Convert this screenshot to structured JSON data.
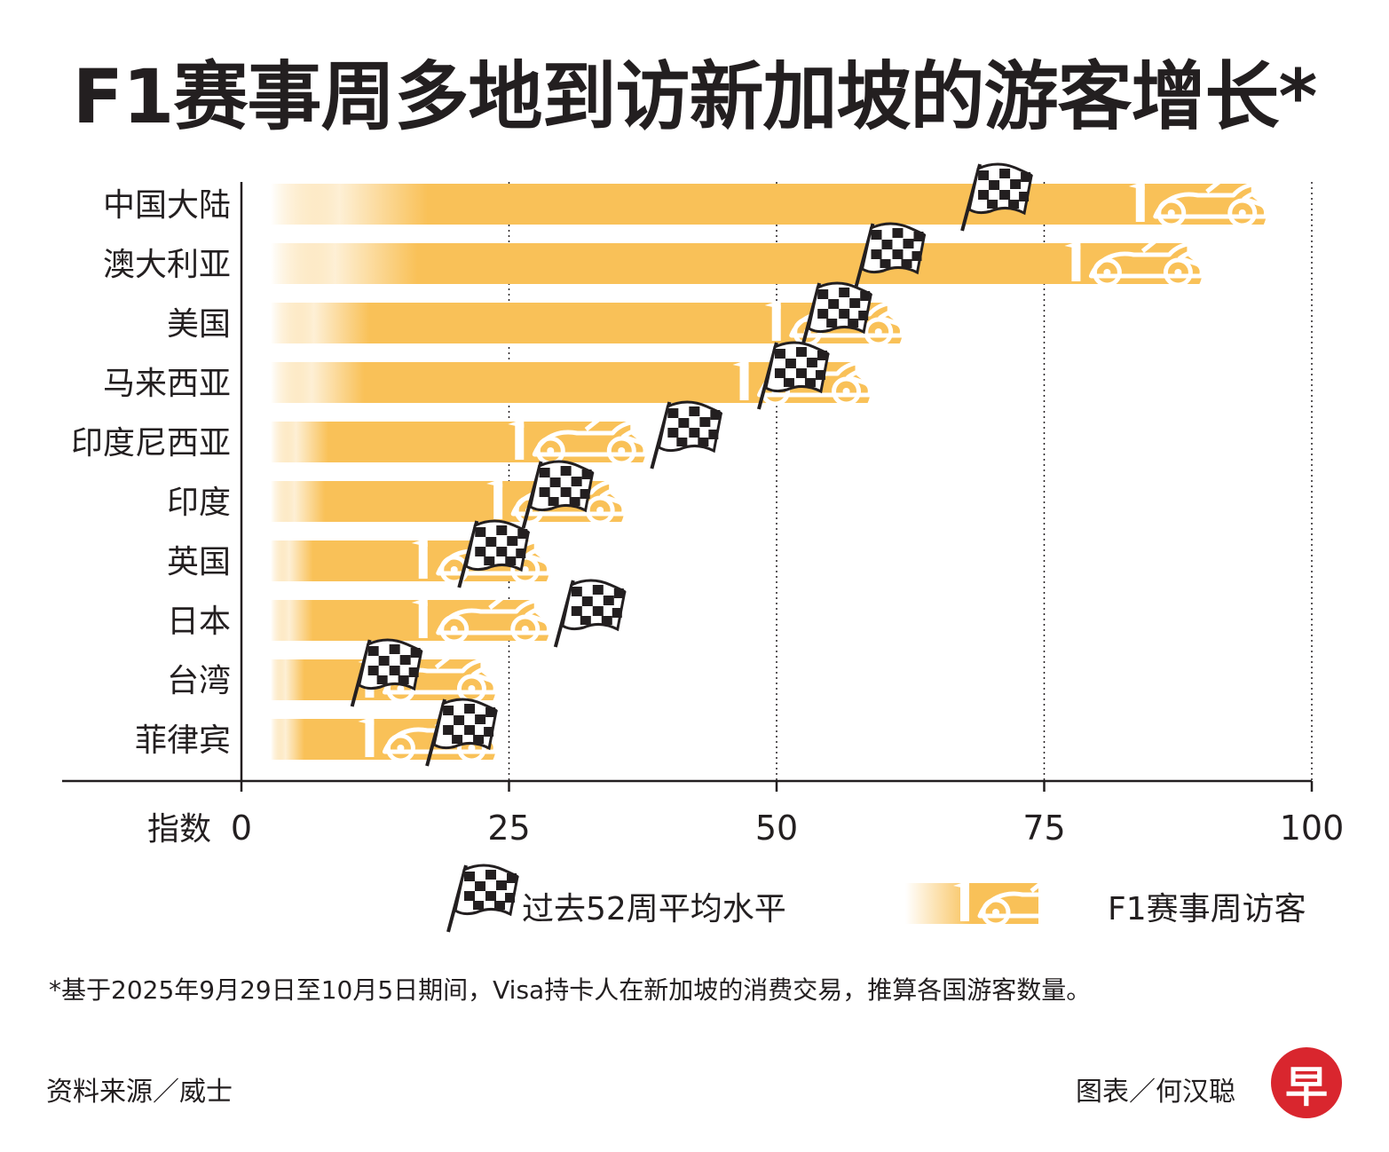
{
  "title": "F1赛事周多地到访新加坡的游客增长*",
  "chart_data": {
    "type": "bar",
    "orientation": "horizontal",
    "title": "F1赛事周多地到访新加坡的游客增长*",
    "xlabel": "指数",
    "xlim": [
      0,
      100
    ],
    "xticks": [
      0,
      25,
      50,
      75,
      100
    ],
    "categories": [
      "中国大陆",
      "澳大利亚",
      "美国",
      "马来西亚",
      "印度尼西亚",
      "印度",
      "英国",
      "日本",
      "台湾",
      "菲律宾"
    ],
    "series": [
      {
        "name": "F1赛事周访客",
        "values": [
          96,
          90,
          62,
          59,
          38,
          36,
          29,
          29,
          24,
          24
        ]
      },
      {
        "name": "过去52周平均水平",
        "values": [
          68,
          58,
          53,
          49,
          39,
          27,
          21,
          30,
          11,
          18
        ]
      }
    ],
    "legend": [
      "过去52周平均水平",
      "F1赛事周访客"
    ],
    "legend_position": "bottom"
  },
  "colors": {
    "bar": "#f9c158",
    "bar_fade": "#ffffff",
    "axis": "#231f20",
    "logo": "#d9262e"
  },
  "footnote": "*基于2025年9月29日至10月5日期间，Visa持卡人在新加坡的消费交易，推算各国游客数量。",
  "source": "资料来源／威士",
  "credit": "图表／何汉聪",
  "logo_text": "早"
}
